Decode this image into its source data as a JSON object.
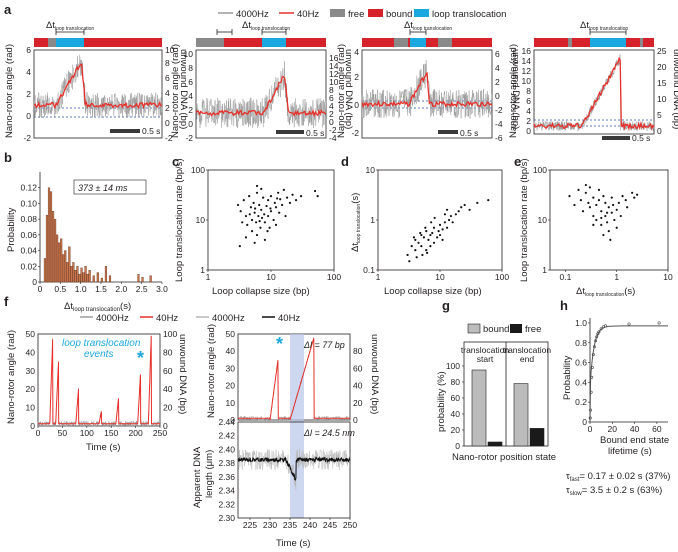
{
  "legend": {
    "items": [
      {
        "label": "4000Hz",
        "color": "#9a9a9a",
        "kind": "line"
      },
      {
        "label": "40Hz",
        "color": "#e8302a",
        "kind": "line"
      },
      {
        "label": "free",
        "color": "#8a8a8a",
        "kind": "block"
      },
      {
        "label": "bound",
        "color": "#d6222a",
        "kind": "block"
      },
      {
        "label": "loop translocation",
        "color": "#1ba8de",
        "kind": "block"
      }
    ]
  },
  "panel_labels": [
    "a",
    "b",
    "c",
    "d",
    "e",
    "f",
    "g",
    "h"
  ],
  "panel_a": {
    "dt_label_main": "Δt",
    "dt_label_sub": "loop translocation",
    "scale_bar_label": "0.5 s",
    "ylabel_left": "Nano-rotor angle (rad)",
    "ylabel_right": "unwound DNA (bp)",
    "traces": [
      {
        "yticks": [
          "-2",
          "0",
          "2",
          "4",
          "6"
        ],
        "yticks_right": [
          "-2",
          "0",
          "2",
          "4",
          "6",
          "8",
          "10"
        ]
      },
      {
        "yticks": [
          "-2",
          "0",
          "2",
          "4",
          "6",
          "8",
          "10"
        ],
        "yticks_right": [
          "-4",
          "-2",
          "0",
          "2",
          "4",
          "6",
          "8",
          "10",
          "12",
          "14",
          "16"
        ]
      },
      {
        "yticks": [
          "-2",
          "0",
          "2",
          "4"
        ],
        "yticks_right": [
          "-6",
          "-4",
          "-2",
          "0",
          "2",
          "4",
          "6"
        ]
      },
      {
        "yticks": [
          "0",
          "2",
          "4",
          "6",
          "8",
          "10",
          "12",
          "14",
          "16"
        ],
        "yticks_right": [
          "0",
          "5",
          "10",
          "15",
          "20",
          "25"
        ]
      }
    ]
  },
  "panel_b": {
    "annotation": "373 ± 14 ms",
    "ylabel": "Probability",
    "xlabel_main": "Δt",
    "xlabel_sub": "loop translocation",
    "xlabel_unit": "(s)"
  },
  "panel_c": {
    "xlabel": "Loop collapse size (bp)",
    "ylabel": "Loop translocation rate (bp/s)"
  },
  "panel_d": {
    "xlabel": "Loop collapse size (bp)",
    "ylabel_main": "Δt",
    "ylabel_sub": "loop translocation",
    "ylabel_unit": "(s)"
  },
  "panel_e": {
    "ylabel": "Loop translocation rate (bp/s)",
    "xlabel_main": "Δt",
    "xlabel_sub": "loop translocation",
    "xlabel_unit": "(s)"
  },
  "panel_f": {
    "legend": [
      {
        "label": "4000Hz",
        "color": "#9a9a9a"
      },
      {
        "label": "40Hz",
        "color": "#e8302a"
      },
      {
        "label": "4000Hz",
        "color": "#b8b8b8"
      },
      {
        "label": "40Hz",
        "color": "#111111"
      }
    ],
    "events_label_line1": "loop translocation",
    "events_label_line2": "events",
    "star": "*",
    "delta_bp": "Δl = 77 bp",
    "delta_nm": "Δl = 24.5 nm",
    "left_ylabel": "Nano-rotor angle (rad)",
    "left_ylabel_right": "unwound DNA (bp)",
    "left_xlabel": "Time (s)",
    "right_ylabel": "Nano-rotor angle (rad)",
    "right_ylabel_right": "unwound DNA (bp)",
    "dna_ylabel_line1": "Apparent DNA",
    "dna_ylabel_line2": "length (μm)",
    "right_xlabel": "Time (s)"
  },
  "panel_g": {
    "xlabel": "Nano-rotor position state",
    "ylabel": "probability (%)",
    "group1_line1": "translocation",
    "group1_line2": "start",
    "group2_line1": "translocation",
    "group2_line2": "end"
  },
  "panel_h": {
    "ylabel": "Probability",
    "xlabel_line1": "Bound end state",
    "xlabel_line2": "lifetime (s)",
    "tau_fast_sym": "τ",
    "tau_fast_sub": "fast",
    "tau_fast_value": "= 0.17 ± 0.02 s (37%)",
    "tau_slow_sym": "τ",
    "tau_slow_sub": "slow",
    "tau_slow_value": "= 3.5 ± 0.2 s (63%)"
  },
  "chart_data": [
    {
      "id": "b",
      "type": "bar",
      "title": "",
      "xlabel": "Δt loop translocation (s)",
      "ylabel": "Probability",
      "xlim": [
        0,
        3
      ],
      "ylim": [
        0,
        0.14
      ],
      "xticks": [
        "0",
        "0.5",
        "1.0",
        "1.5",
        "2.0",
        "2.5",
        "3.0"
      ],
      "yticks": [
        "0",
        "0.02",
        "0.04",
        "0.06",
        "0.08",
        "0.10",
        "0.12"
      ],
      "bin_width": 0.05,
      "bin_start": [
        0.1,
        0.15,
        0.2,
        0.25,
        0.3,
        0.35,
        0.4,
        0.45,
        0.5,
        0.55,
        0.6,
        0.65,
        0.7,
        0.75,
        0.8,
        0.85,
        0.9,
        0.95,
        1.0,
        1.05,
        1.1,
        1.15,
        1.2,
        1.3,
        1.4,
        1.5,
        1.6,
        1.7,
        2.4,
        2.5,
        2.7
      ],
      "values": [
        0.03,
        0.085,
        0.12,
        0.115,
        0.09,
        0.08,
        0.06,
        0.05,
        0.055,
        0.035,
        0.04,
        0.025,
        0.045,
        0.02,
        0.025,
        0.015,
        0.02,
        0.01,
        0.018,
        0.012,
        0.02,
        0.01,
        0.015,
        0.008,
        0.012,
        0.005,
        0.02,
        0.008,
        0.01,
        0.006,
        0.008
      ]
    },
    {
      "id": "c",
      "type": "scatter",
      "xscale": "log",
      "yscale": "log",
      "xlim": [
        1,
        100
      ],
      "ylim": [
        1,
        100
      ],
      "xticks": [
        "1",
        "10",
        "100"
      ],
      "yticks": [
        "1",
        "10",
        "100"
      ],
      "xlabel": "Loop collapse size (bp)",
      "ylabel": "Loop translocation rate (bp/s)",
      "points": [
        [
          3,
          20
        ],
        [
          3.3,
          15
        ],
        [
          3.5,
          9
        ],
        [
          3.7,
          25
        ],
        [
          4,
          12
        ],
        [
          4.2,
          8
        ],
        [
          4.5,
          30
        ],
        [
          4.8,
          18
        ],
        [
          5,
          10
        ],
        [
          5,
          6
        ],
        [
          5.3,
          22
        ],
        [
          5.5,
          14
        ],
        [
          5.8,
          9
        ],
        [
          6,
          35
        ],
        [
          6,
          5
        ],
        [
          6.3,
          12
        ],
        [
          6.5,
          20
        ],
        [
          6.8,
          7
        ],
        [
          7,
          16
        ],
        [
          7.2,
          11
        ],
        [
          7.5,
          28
        ],
        [
          7.8,
          13
        ],
        [
          8,
          9
        ],
        [
          8,
          4
        ],
        [
          8.5,
          19
        ],
        [
          9,
          25
        ],
        [
          9,
          12
        ],
        [
          9.5,
          7
        ],
        [
          10,
          30
        ],
        [
          10,
          15
        ],
        [
          11,
          10
        ],
        [
          11.5,
          22
        ],
        [
          12,
          18
        ],
        [
          12,
          8
        ],
        [
          13,
          35
        ],
        [
          13.5,
          14
        ],
        [
          14,
          26
        ],
        [
          15,
          20
        ],
        [
          16,
          40
        ],
        [
          17,
          12
        ],
        [
          18,
          28
        ],
        [
          20,
          22
        ],
        [
          22,
          32
        ],
        [
          25,
          25
        ],
        [
          30,
          30
        ],
        [
          3.2,
          3
        ],
        [
          4,
          4.5
        ],
        [
          5.5,
          3.5
        ],
        [
          6,
          48
        ],
        [
          7,
          42
        ],
        [
          4.6,
          13
        ],
        [
          5.6,
          17
        ],
        [
          6.6,
          9.5
        ],
        [
          8.8,
          6
        ],
        [
          9.8,
          17
        ],
        [
          12.5,
          27
        ],
        [
          50,
          38
        ],
        [
          55,
          30
        ]
      ]
    },
    {
      "id": "d",
      "type": "scatter",
      "xscale": "log",
      "yscale": "log",
      "xlim": [
        1,
        100
      ],
      "ylim": [
        0.1,
        10
      ],
      "xticks": [
        "1",
        "10",
        "100"
      ],
      "yticks": [
        "0.1",
        "1",
        "10"
      ],
      "xlabel": "Loop collapse size (bp)",
      "ylabel": "Δt loop translocation (s)",
      "points": [
        [
          3,
          0.2
        ],
        [
          3.5,
          0.3
        ],
        [
          4,
          0.25
        ],
        [
          4,
          0.4
        ],
        [
          4.5,
          0.35
        ],
        [
          5,
          0.5
        ],
        [
          5,
          0.3
        ],
        [
          5.5,
          0.45
        ],
        [
          6,
          0.6
        ],
        [
          6,
          0.25
        ],
        [
          6.5,
          0.4
        ],
        [
          7,
          0.5
        ],
        [
          7,
          0.3
        ],
        [
          7.5,
          0.55
        ],
        [
          8,
          0.35
        ],
        [
          8,
          0.7
        ],
        [
          9,
          0.45
        ],
        [
          9.5,
          0.6
        ],
        [
          10,
          0.5
        ],
        [
          10,
          0.8
        ],
        [
          11,
          0.65
        ],
        [
          12,
          0.9
        ],
        [
          13,
          0.7
        ],
        [
          14,
          1.0
        ],
        [
          15,
          1.2
        ],
        [
          16,
          0.9
        ],
        [
          18,
          1.3
        ],
        [
          20,
          1.5
        ],
        [
          22,
          1.8
        ],
        [
          25,
          2.0
        ],
        [
          30,
          1.6
        ],
        [
          40,
          2.2
        ],
        [
          60,
          2.5
        ],
        [
          3.2,
          0.15
        ],
        [
          4.2,
          0.18
        ],
        [
          5.2,
          0.2
        ],
        [
          6.2,
          0.22
        ],
        [
          7.2,
          0.9
        ],
        [
          8.2,
          1.1
        ],
        [
          5.8,
          0.7
        ],
        [
          4.8,
          0.55
        ],
        [
          3.8,
          0.45
        ],
        [
          12,
          1.3
        ],
        [
          13,
          1.6
        ],
        [
          11,
          0.4
        ]
      ]
    },
    {
      "id": "e",
      "type": "scatter",
      "xscale": "log",
      "yscale": "log",
      "xlim": [
        0.05,
        10
      ],
      "ylim": [
        1,
        100
      ],
      "xticks": [
        "0.1",
        "1",
        "10"
      ],
      "yticks": [
        "1",
        "10",
        "100"
      ],
      "xlabel": "Δt loop translocation (s)",
      "ylabel": "Loop translocation rate (bp/s)",
      "points": [
        [
          0.12,
          30
        ],
        [
          0.15,
          20
        ],
        [
          0.18,
          40
        ],
        [
          0.2,
          25
        ],
        [
          0.22,
          15
        ],
        [
          0.25,
          35
        ],
        [
          0.28,
          22
        ],
        [
          0.3,
          18
        ],
        [
          0.3,
          45
        ],
        [
          0.35,
          12
        ],
        [
          0.35,
          28
        ],
        [
          0.4,
          20
        ],
        [
          0.4,
          10
        ],
        [
          0.45,
          25
        ],
        [
          0.5,
          15
        ],
        [
          0.5,
          8
        ],
        [
          0.55,
          30
        ],
        [
          0.6,
          12
        ],
        [
          0.6,
          22
        ],
        [
          0.65,
          9
        ],
        [
          0.7,
          18
        ],
        [
          0.7,
          6
        ],
        [
          0.8,
          14
        ],
        [
          0.8,
          28
        ],
        [
          0.9,
          10
        ],
        [
          1.0,
          16
        ],
        [
          1.0,
          7
        ],
        [
          1.1,
          22
        ],
        [
          1.2,
          12
        ],
        [
          1.3,
          30
        ],
        [
          1.5,
          25
        ],
        [
          1.6,
          18
        ],
        [
          2.0,
          35
        ],
        [
          2.2,
          28
        ],
        [
          2.5,
          32
        ],
        [
          0.25,
          50
        ],
        [
          0.45,
          40
        ],
        [
          0.55,
          5
        ],
        [
          0.75,
          4
        ],
        [
          0.35,
          8
        ],
        [
          0.5,
          11
        ],
        [
          0.65,
          14
        ],
        [
          0.85,
          20
        ]
      ]
    },
    {
      "id": "g",
      "type": "bar",
      "ylabel": "probability (%)",
      "xlabel": "Nano-rotor position state",
      "ylim": [
        0,
        100
      ],
      "yticks": [
        "0",
        "20",
        "40",
        "60",
        "80",
        "100"
      ],
      "categories": [
        "translocation start",
        "translocation end"
      ],
      "series": [
        {
          "name": "bound",
          "color": "#bcbcbc",
          "values": [
            95,
            78
          ]
        },
        {
          "name": "free",
          "color": "#1a1a1a",
          "values": [
            5,
            22
          ]
        }
      ]
    },
    {
      "id": "h",
      "type": "line",
      "ylabel": "Probability",
      "xlabel": "Bound end state lifetime (s)",
      "xlim": [
        0,
        70
      ],
      "ylim": [
        0,
        1.05
      ],
      "xticks": [
        "0",
        "20",
        "40",
        "60"
      ],
      "yticks": [
        "0",
        "0.2",
        "0.4",
        "0.6",
        "0.8",
        "1.0"
      ],
      "points": [
        [
          0.2,
          0.04
        ],
        [
          0.5,
          0.12
        ],
        [
          1,
          0.3
        ],
        [
          1.5,
          0.45
        ],
        [
          2,
          0.55
        ],
        [
          3,
          0.68
        ],
        [
          4,
          0.76
        ],
        [
          5,
          0.82
        ],
        [
          6,
          0.86
        ],
        [
          7,
          0.89
        ],
        [
          8,
          0.91
        ],
        [
          10,
          0.94
        ],
        [
          12,
          0.96
        ],
        [
          14,
          0.97
        ],
        [
          35,
          0.99
        ],
        [
          62,
          1.0
        ]
      ],
      "fit": {
        "tau_fast": 0.17,
        "tau_slow": 3.5,
        "frac_fast": 0.37,
        "frac_slow": 0.63
      }
    },
    {
      "id": "f",
      "type": "line",
      "xlabel": "Time (s)",
      "ylabel": "Nano-rotor angle (rad)",
      "xlim": [
        0,
        250
      ],
      "ylim": [
        0,
        50
      ],
      "xticks": [
        "0",
        "50",
        "100",
        "150",
        "200",
        "250"
      ],
      "yticks": [
        "0",
        "10",
        "20",
        "30",
        "40",
        "50"
      ],
      "spike_times": [
        30,
        42,
        83,
        130,
        165,
        210,
        232
      ],
      "spike_peaks": [
        47,
        35,
        20,
        8,
        15,
        28,
        49
      ]
    }
  ]
}
